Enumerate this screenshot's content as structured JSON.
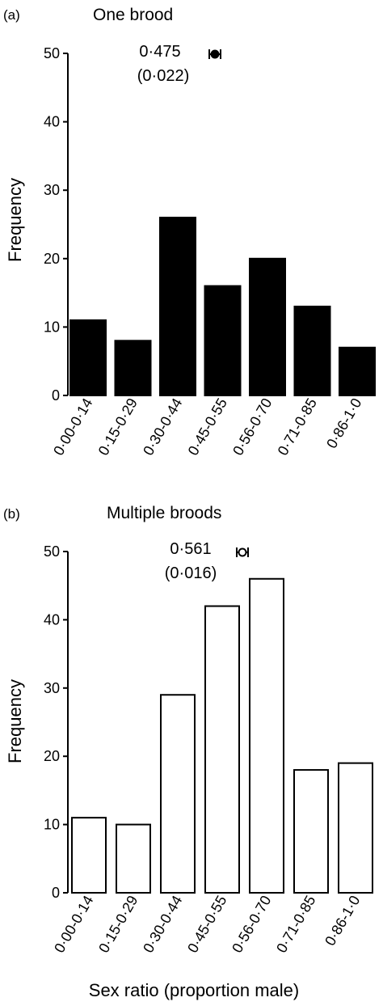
{
  "colors": {
    "panel_a_fill": "#000000",
    "panel_b_fill": "#ffffff",
    "stroke": "#000000"
  },
  "shared_xlabel": "Sex ratio (proportion male)",
  "chart_data": [
    {
      "type": "bar",
      "panel": "(a)",
      "title": "One brood",
      "ylabel": "Frequency",
      "xlabel": "",
      "ylim": [
        0,
        50
      ],
      "yticks": [
        0,
        10,
        20,
        30,
        40,
        50
      ],
      "grid": false,
      "categories": [
        "0·00-0·14",
        "0·15-0·29",
        "0·30-0·44",
        "0·45-0·55",
        "0·56-0·70",
        "0·71-0·85",
        "0·86-1·0"
      ],
      "values": [
        11,
        8,
        26,
        16,
        20,
        13,
        7
      ],
      "bar_fill": "#000000",
      "annotation": {
        "mean_text": "0·475",
        "se_text": "(0·022)",
        "mean": 0.475,
        "se": 0.022,
        "marker": "filled-circle"
      }
    },
    {
      "type": "bar",
      "panel": "(b)",
      "title": "Multiple broods",
      "ylabel": "Frequency",
      "xlabel": "Sex ratio (proportion male)",
      "ylim": [
        0,
        50
      ],
      "yticks": [
        0,
        10,
        20,
        30,
        40,
        50
      ],
      "grid": false,
      "categories": [
        "0·00-0·14",
        "0·15-0·29",
        "0·30-0·44",
        "0·45-0·55",
        "0·56-0·70",
        "0·71-0·85",
        "0·86-1·0"
      ],
      "values": [
        11,
        10,
        29,
        42,
        46,
        18,
        19
      ],
      "bar_fill": "#ffffff",
      "annotation": {
        "mean_text": "0·561",
        "se_text": "(0·016)",
        "mean": 0.561,
        "se": 0.016,
        "marker": "open-circle"
      }
    }
  ]
}
